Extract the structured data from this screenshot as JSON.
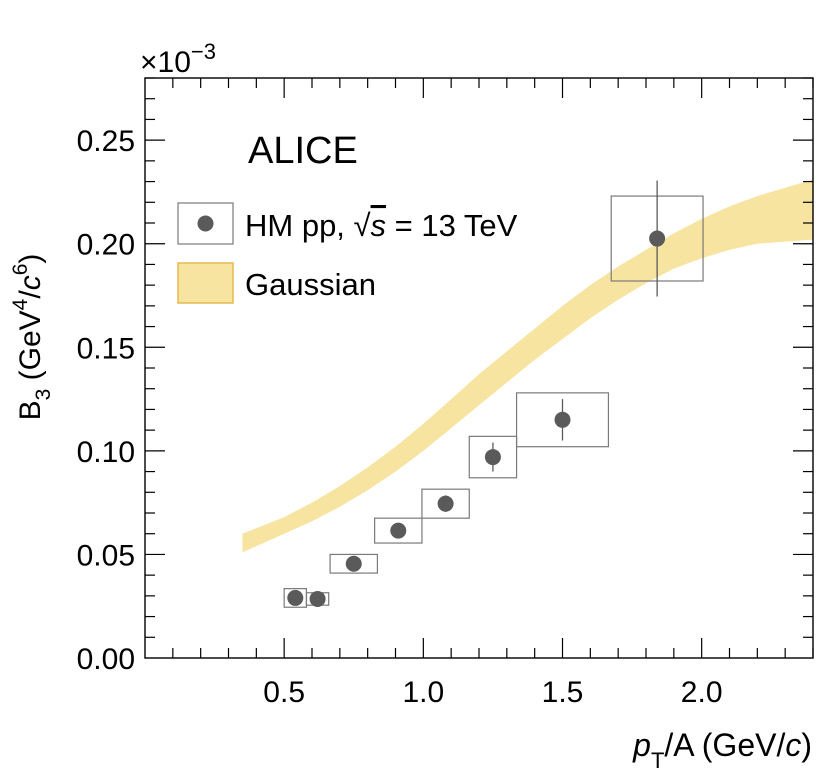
{
  "chart_data": {
    "type": "scatter",
    "experiment": "ALICE",
    "multiplier": {
      "base": "×10",
      "exponent": "−3"
    },
    "ylabel": {
      "main": "B",
      "sub": "3",
      "unit_open": " (GeV",
      "sup1": "4",
      "slash": "/",
      "c": "c",
      "sup2": "6",
      "unit_close": ")"
    },
    "xlabel": {
      "p": "p",
      "sub": "T",
      "rest": "/A (GeV/",
      "c": "c",
      "close": ")"
    },
    "xlim": [
      0.0,
      2.4
    ],
    "ylim": [
      0.0,
      0.28
    ],
    "x_ticks": [
      0.5,
      1.0,
      1.5,
      2.0
    ],
    "x_tick_labels": [
      "0.5",
      "1.0",
      "1.5",
      "2.0"
    ],
    "y_ticks": [
      0.0,
      0.05,
      0.1,
      0.15,
      0.2,
      0.25
    ],
    "y_tick_labels": [
      "0.00",
      "0.05",
      "0.10",
      "0.15",
      "0.20",
      "0.25"
    ],
    "legend": {
      "position": "top-left",
      "data_entry": {
        "prefix": "HM pp, ",
        "sqrt": "√",
        "s": "s",
        "suffix": " = 13 TeV"
      },
      "band_entry": "Gaussian"
    },
    "series": [
      {
        "name": "HM pp, √s = 13 TeV",
        "points": [
          {
            "x": 0.54,
            "y": 0.029,
            "stat": 0.002,
            "sys_dx": 0.04,
            "sys_dy": 0.0045
          },
          {
            "x": 0.62,
            "y": 0.0285,
            "stat": 0.002,
            "sys_dx": 0.04,
            "sys_dy": 0.003
          },
          {
            "x": 0.75,
            "y": 0.0455,
            "stat": 0.002,
            "sys_dx": 0.085,
            "sys_dy": 0.0045
          },
          {
            "x": 0.91,
            "y": 0.0615,
            "stat": 0.003,
            "sys_dx": 0.085,
            "sys_dy": 0.006
          },
          {
            "x": 1.08,
            "y": 0.0745,
            "stat": 0.004,
            "sys_dx": 0.085,
            "sys_dy": 0.007
          },
          {
            "x": 1.25,
            "y": 0.097,
            "stat": 0.007,
            "sys_dx": 0.085,
            "sys_dy": 0.01
          },
          {
            "x": 1.5,
            "y": 0.115,
            "stat": 0.01,
            "sys_dx": 0.165,
            "sys_dy": 0.013
          },
          {
            "x": 1.84,
            "y": 0.2025,
            "stat": 0.028,
            "sys_dx": 0.165,
            "sys_dy": 0.0205
          }
        ]
      }
    ],
    "band": {
      "name": "Gaussian",
      "x": [
        0.35,
        0.5,
        0.6,
        0.7,
        0.8,
        0.9,
        1.0,
        1.1,
        1.2,
        1.3,
        1.4,
        1.5,
        1.6,
        1.7,
        1.8,
        1.9,
        2.0,
        2.1,
        2.2,
        2.3,
        2.4
      ],
      "lower": [
        0.051,
        0.06,
        0.066,
        0.073,
        0.081,
        0.09,
        0.1,
        0.111,
        0.122,
        0.133,
        0.144,
        0.154,
        0.164,
        0.173,
        0.181,
        0.188,
        0.193,
        0.197,
        0.2,
        0.201,
        0.202
      ],
      "upper": [
        0.06,
        0.068,
        0.075,
        0.083,
        0.092,
        0.102,
        0.113,
        0.125,
        0.137,
        0.148,
        0.159,
        0.17,
        0.18,
        0.189,
        0.197,
        0.205,
        0.212,
        0.218,
        0.223,
        0.227,
        0.231
      ]
    },
    "colors": {
      "marker": "#5a5a5a",
      "box": "#7a7a7a",
      "band_fill": "#f6e4a0",
      "band_edge": "#e8b850",
      "axis": "#000000"
    }
  }
}
